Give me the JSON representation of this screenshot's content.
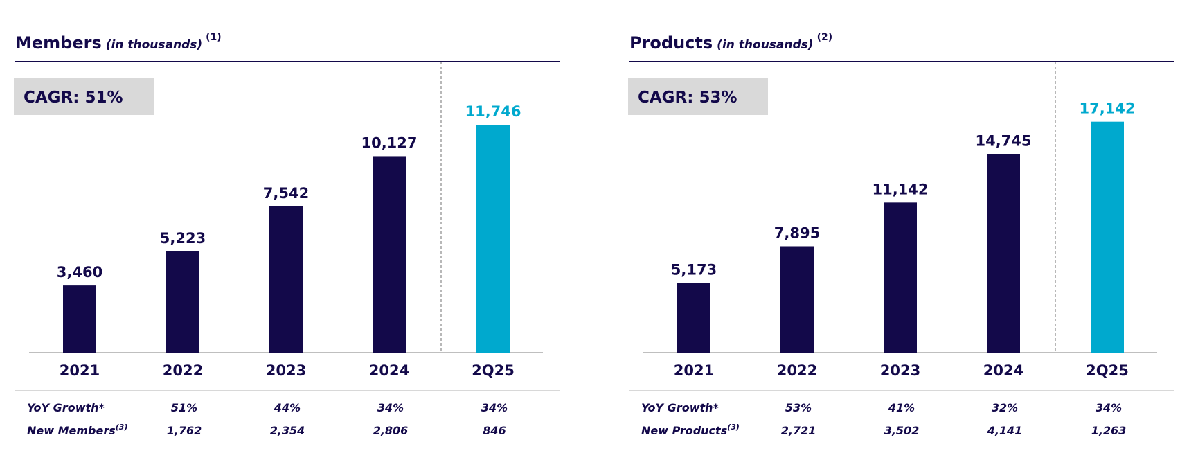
{
  "chart_data": [
    {
      "type": "bar",
      "title": "Members",
      "title_note": "(in thousands)",
      "title_ref": "(1)",
      "cagr": "CAGR: 51%",
      "categories": [
        "2021",
        "2022",
        "2023",
        "2024",
        "2Q25"
      ],
      "values": [
        3460,
        5223,
        7542,
        10127,
        11746
      ],
      "value_labels": [
        "3,460",
        "5,223",
        "7,542",
        "10,127",
        "11,746"
      ],
      "colors": [
        "#13094a",
        "#13094a",
        "#13094a",
        "#13094a",
        "#00a9ce"
      ],
      "ylim": [
        0,
        12500
      ],
      "table": {
        "rows": [
          {
            "label": "YoY Growth*",
            "cells": [
              "51%",
              "44%",
              "34%",
              "34%"
            ]
          },
          {
            "label": "New Members",
            "ref": "(3)",
            "cells": [
              "1,762",
              "2,354",
              "2,806",
              "846"
            ]
          }
        ]
      }
    },
    {
      "type": "bar",
      "title": "Products",
      "title_note": "(in thousands)",
      "title_ref": "(2)",
      "cagr": "CAGR: 53%",
      "categories": [
        "2021",
        "2022",
        "2023",
        "2024",
        "2Q25"
      ],
      "values": [
        5173,
        7895,
        11142,
        14745,
        17142
      ],
      "value_labels": [
        "5,173",
        "7,895",
        "11,142",
        "14,745",
        "17,142"
      ],
      "colors": [
        "#13094a",
        "#13094a",
        "#13094a",
        "#13094a",
        "#00a9ce"
      ],
      "ylim": [
        0,
        18000
      ],
      "table": {
        "rows": [
          {
            "label": "YoY Growth*",
            "cells": [
              "53%",
              "41%",
              "32%",
              "34%"
            ]
          },
          {
            "label": "New Products",
            "ref": "(3)",
            "cells": [
              "2,721",
              "3,502",
              "4,141",
              "1,263"
            ]
          }
        ]
      }
    }
  ]
}
